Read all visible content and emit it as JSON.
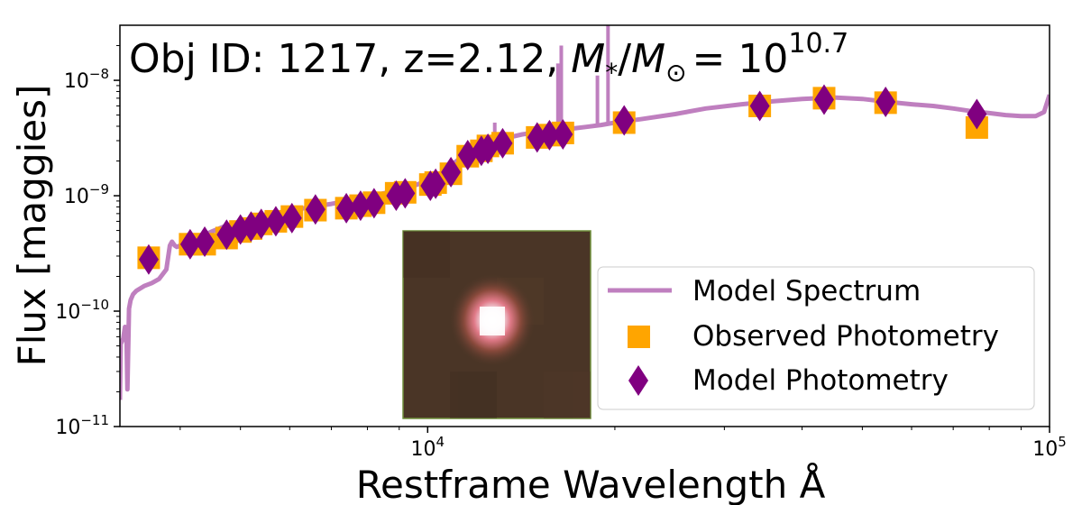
{
  "chart_data": {
    "type": "line+scatter",
    "title": {
      "prefix": "Obj ID: 1217, z=2.12, ",
      "mass_label": "M",
      "mass_sub": "*",
      "sun_label": "M",
      "sun_sub": "⊙",
      "equals": "= 10",
      "mass_exp": "10.7"
    },
    "xlabel": "Restframe Wavelength Å",
    "ylabel": "Flux [maggies]",
    "xscale": "log",
    "yscale": "log",
    "xlim": [
      3200,
      100000
    ],
    "ylim": [
      1e-11,
      3e-08
    ],
    "x_ticks": [
      {
        "value": 10000,
        "base": "10",
        "exp": "4"
      },
      {
        "value": 100000,
        "base": "10",
        "exp": "5"
      }
    ],
    "y_ticks": [
      {
        "value": 1e-11,
        "base": "10",
        "exp": "−11"
      },
      {
        "value": 1e-10,
        "base": "10",
        "exp": "−10"
      },
      {
        "value": 1e-09,
        "base": "10",
        "exp": "−9"
      },
      {
        "value": 1e-08,
        "base": "10",
        "exp": "−8"
      }
    ],
    "legend": {
      "location": "lower-right",
      "entries": [
        "Model Spectrum",
        "Observed Photometry",
        "Model Photometry"
      ]
    },
    "colors": {
      "spectrum": "#bf7fbf",
      "observed": "#ffa500",
      "model": "#800080",
      "inset_bg": "#4a3526"
    },
    "series": [
      {
        "name": "Model Spectrum",
        "type": "line",
        "x": [
          3200,
          3210,
          3240,
          3260,
          3280,
          3290,
          3310,
          3330,
          3360,
          3400,
          3500,
          3600,
          3700,
          3800,
          3850,
          3880,
          3920,
          3950,
          4000,
          4100,
          4300,
          4500,
          4700,
          5000,
          5300,
          5600,
          6000,
          6500,
          7000,
          7500,
          8000,
          8500,
          9000,
          9500,
          10000,
          10500,
          11000,
          11500,
          12000,
          12300,
          12800,
          13500,
          14200,
          15000,
          16000,
          17000,
          18000,
          19000,
          20000,
          22000,
          25000,
          28000,
          32000,
          36000,
          40000,
          45000,
          50000,
          55000,
          60000,
          65000,
          70000,
          75000,
          80000,
          85000,
          90000,
          95000,
          98000,
          100000
        ],
        "y": [
          1.7e-11,
          5.2e-11,
          5.8e-11,
          7.3e-11,
          5.5e-11,
          2.1e-11,
          1.05e-10,
          1.25e-10,
          1.4e-10,
          1.5e-10,
          1.65e-10,
          1.75e-10,
          1.9e-10,
          2.3e-10,
          3.7e-10,
          4e-10,
          3.7e-10,
          3.6e-10,
          3.7e-10,
          3.9e-10,
          4.4e-10,
          4.9e-10,
          5.4e-10,
          5.9e-10,
          6.4e-10,
          6.9e-10,
          7.4e-10,
          8e-10,
          8.5e-10,
          9.1e-10,
          9.7e-10,
          1.05e-09,
          1.12e-09,
          1.22e-09,
          1.35e-09,
          1.55e-09,
          1.9e-09,
          2.3e-09,
          2.75e-09,
          2.95e-09,
          3.1e-09,
          3.2e-09,
          3.4e-09,
          3.55e-09,
          3.65e-09,
          3.8e-09,
          3.95e-09,
          4.1e-09,
          4.3e-09,
          4.6e-09,
          5.1e-09,
          5.7e-09,
          6.2e-09,
          6.6e-09,
          6.9e-09,
          7.1e-09,
          6.9e-09,
          6.5e-09,
          6.2e-09,
          6e-09,
          5.7e-09,
          5.4e-09,
          5.2e-09,
          5e-09,
          4.9e-09,
          4.9e-09,
          5.3e-09,
          7.5e-09
        ]
      },
      {
        "name": "Emission Lines",
        "type": "spikes",
        "lines": [
          {
            "x": 12820,
            "base": 3.1e-09,
            "peak": 4.3e-09
          },
          {
            "x": 16200,
            "base": 3.6e-09,
            "peak": 1.4e-08
          },
          {
            "x": 16400,
            "base": 3.6e-09,
            "peak": 2e-08
          },
          {
            "x": 18750,
            "base": 4e-09,
            "peak": 1.1e-08
          },
          {
            "x": 19500,
            "base": 4.1e-09,
            "peak": 3e-08
          }
        ]
      },
      {
        "name": "Observed Photometry",
        "type": "scatter",
        "marker": "square",
        "x": [
          3560,
          4150,
          4380,
          4750,
          5000,
          5200,
          5400,
          5700,
          6050,
          6600,
          7400,
          7800,
          8200,
          8900,
          9200,
          10100,
          10300,
          10900,
          11600,
          12200,
          12500,
          13200,
          15000,
          15700,
          16500,
          20700,
          34200,
          43400,
          54500,
          76400
        ],
        "y": [
          2.9e-10,
          3.8e-10,
          3.8e-10,
          4.3e-10,
          4.9e-10,
          5.2e-10,
          5.7e-10,
          6e-10,
          6.6e-10,
          7.5e-10,
          7.8e-10,
          8.2e-10,
          8.7e-10,
          1.05e-09,
          1.07e-09,
          1.25e-09,
          1.3e-09,
          1.55e-09,
          2.2e-09,
          2.45e-09,
          2.7e-09,
          2.85e-09,
          3.2e-09,
          3.35e-09,
          3.5e-09,
          4.3e-09,
          6e-09,
          7e-09,
          6.4e-09,
          3.9e-09
        ]
      },
      {
        "name": "Model Photometry",
        "type": "scatter",
        "marker": "diamond",
        "x": [
          3560,
          4150,
          4380,
          4750,
          5000,
          5200,
          5400,
          5700,
          6050,
          6600,
          7400,
          7800,
          8200,
          8900,
          9200,
          10100,
          10300,
          10900,
          11600,
          12200,
          12500,
          13200,
          15000,
          15700,
          16500,
          20700,
          34200,
          43400,
          54500,
          76400
        ],
        "y": [
          2.8e-10,
          3.8e-10,
          4e-10,
          4.6e-10,
          5.1e-10,
          5.4e-10,
          5.7e-10,
          6e-10,
          6.4e-10,
          7.6e-10,
          7.8e-10,
          8.2e-10,
          8.6e-10,
          1e-09,
          1.05e-09,
          1.22e-09,
          1.27e-09,
          1.6e-09,
          2.25e-09,
          2.45e-09,
          2.55e-09,
          2.85e-09,
          3.2e-09,
          3.35e-09,
          3.4e-09,
          4.5e-09,
          6e-09,
          6.8e-09,
          6.5e-09,
          5.1e-09
        ]
      }
    ]
  }
}
